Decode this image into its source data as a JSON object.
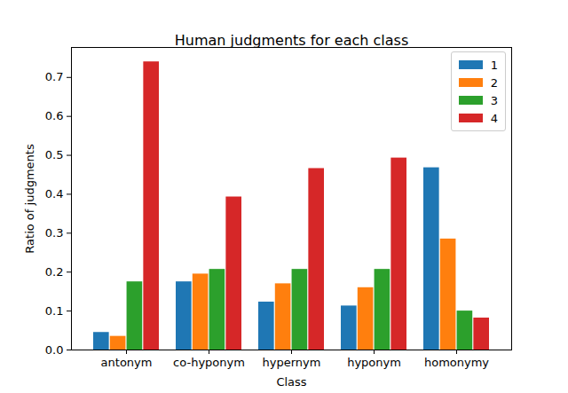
{
  "chart_data": {
    "type": "bar",
    "title": "Human judgments for each class",
    "xlabel": "Class",
    "ylabel": "Ratio of judgments",
    "categories": [
      "antonym",
      "co-hyponym",
      "hypernym",
      "hyponym",
      "homonymy"
    ],
    "series": [
      {
        "name": "1",
        "color": "#1f77b4",
        "values": [
          0.045,
          0.175,
          0.123,
          0.113,
          0.468
        ]
      },
      {
        "name": "2",
        "color": "#ff7f0e",
        "values": [
          0.035,
          0.195,
          0.17,
          0.16,
          0.285
        ]
      },
      {
        "name": "3",
        "color": "#2ca02c",
        "values": [
          0.175,
          0.207,
          0.207,
          0.207,
          0.1
        ]
      },
      {
        "name": "4",
        "color": "#d62728",
        "values": [
          0.74,
          0.393,
          0.466,
          0.493,
          0.082
        ]
      }
    ],
    "ylim": [
      0,
      0.777
    ],
    "yticks": [
      {
        "value": 0,
        "label": "0.0"
      },
      0.1,
      0.2,
      0.3,
      0.4,
      0.5,
      0.6,
      0.7
    ],
    "legend": "upper right"
  }
}
